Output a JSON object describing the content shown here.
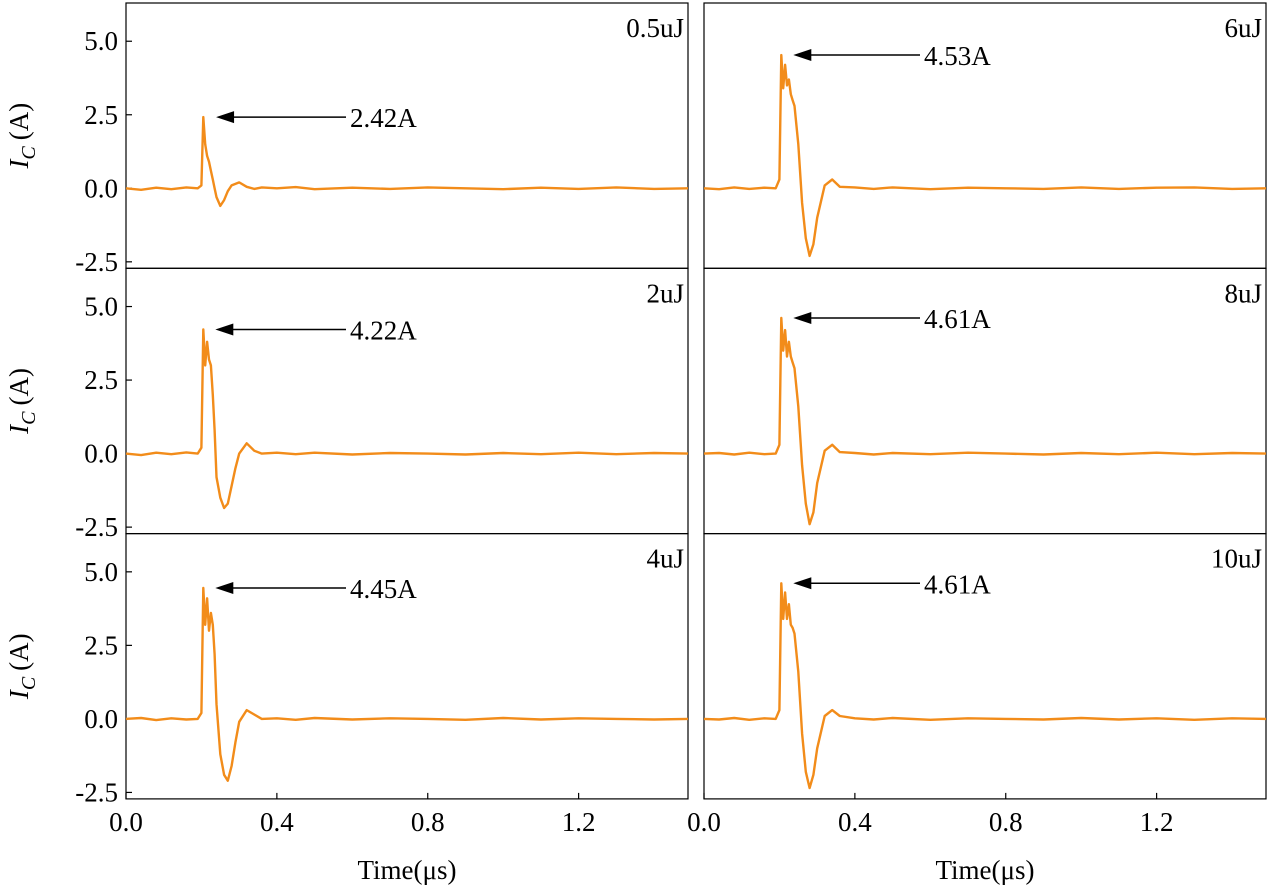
{
  "chart_data": [
    {
      "type": "line",
      "energy_label": "0.5uJ",
      "peak_label": "2.42A",
      "peak_x": 0.207,
      "peak_y": 2.42,
      "ylabel_symbol": "I",
      "ylabel_subscript": "C",
      "ylabel_unit": "(A)",
      "xlim": [
        0,
        1.49
      ],
      "ylim": [
        -2.72,
        6.3
      ],
      "yticks": [
        {
          "value": -2.5,
          "label": "-2.5"
        },
        {
          "value": 0,
          "label": "0.0"
        },
        {
          "value": 2.5,
          "label": "2.5"
        },
        {
          "value": 5,
          "label": "5.0"
        }
      ],
      "x": [
        0,
        0.04,
        0.08,
        0.12,
        0.16,
        0.19,
        0.2,
        0.205,
        0.21,
        0.215,
        0.22,
        0.225,
        0.23,
        0.235,
        0.24,
        0.25,
        0.26,
        0.27,
        0.28,
        0.29,
        0.3,
        0.32,
        0.34,
        0.36,
        0.4,
        0.45,
        0.5,
        0.6,
        0.7,
        0.8,
        0.9,
        1.0,
        1.1,
        1.2,
        1.3,
        1.4,
        1.49
      ],
      "series": [
        {
          "color": "#f28c1a",
          "values": [
            0,
            -0.05,
            0.02,
            -0.03,
            0.03,
            0,
            0.1,
            2.42,
            1.5,
            1.1,
            0.9,
            0.6,
            0.3,
            0,
            -0.3,
            -0.6,
            -0.4,
            -0.1,
            0.1,
            0.15,
            0.2,
            0.05,
            -0.02,
            0.03,
            0,
            0.04,
            -0.03,
            0.02,
            -0.02,
            0.03,
            0,
            -0.03,
            0.02,
            -0.02,
            0.03,
            -0.02,
            0
          ]
        }
      ]
    },
    {
      "type": "line",
      "energy_label": "2uJ",
      "peak_label": "4.22A",
      "peak_x": 0.205,
      "peak_y": 4.22,
      "ylabel_symbol": "I",
      "ylabel_subscript": "C",
      "ylabel_unit": "(A)",
      "xlim": [
        0,
        1.49
      ],
      "ylim": [
        -2.72,
        6.3
      ],
      "yticks": [
        {
          "value": -2.5,
          "label": "-2.5"
        },
        {
          "value": 0,
          "label": "0.0"
        },
        {
          "value": 2.5,
          "label": "2.5"
        },
        {
          "value": 5,
          "label": "5.0"
        }
      ],
      "x": [
        0,
        0.04,
        0.08,
        0.12,
        0.16,
        0.19,
        0.2,
        0.205,
        0.21,
        0.215,
        0.22,
        0.225,
        0.23,
        0.235,
        0.24,
        0.25,
        0.26,
        0.27,
        0.28,
        0.29,
        0.3,
        0.32,
        0.34,
        0.36,
        0.4,
        0.45,
        0.5,
        0.6,
        0.7,
        0.8,
        0.9,
        1.0,
        1.1,
        1.2,
        1.3,
        1.4,
        1.49
      ],
      "series": [
        {
          "color": "#f28c1a",
          "values": [
            0,
            -0.05,
            0.03,
            -0.02,
            0.04,
            0,
            0.2,
            4.22,
            3.0,
            3.8,
            3.2,
            3.0,
            2.0,
            0.8,
            -0.8,
            -1.5,
            -1.85,
            -1.7,
            -1.1,
            -0.5,
            0,
            0.35,
            0.1,
            0,
            0.03,
            -0.02,
            0.03,
            -0.03,
            0.02,
            0,
            -0.03,
            0.02,
            -0.02,
            0.03,
            -0.02,
            0.02,
            0
          ]
        }
      ]
    },
    {
      "type": "line",
      "energy_label": "4uJ",
      "peak_label": "4.45A",
      "peak_x": 0.205,
      "peak_y": 4.45,
      "ylabel_symbol": "I",
      "ylabel_subscript": "C",
      "ylabel_unit": "(A)",
      "xlabel": "Time(μs)",
      "xlim": [
        0,
        1.49
      ],
      "ylim": [
        -2.72,
        6.3
      ],
      "xticks": [
        {
          "value": 0,
          "label": "0.0"
        },
        {
          "value": 0.4,
          "label": "0.4"
        },
        {
          "value": 0.8,
          "label": "0.8"
        },
        {
          "value": 1.2,
          "label": "1.2"
        }
      ],
      "yticks": [
        {
          "value": -2.5,
          "label": "-2.5"
        },
        {
          "value": 0,
          "label": "0.0"
        },
        {
          "value": 2.5,
          "label": "2.5"
        },
        {
          "value": 5,
          "label": "5.0"
        }
      ],
      "x": [
        0,
        0.04,
        0.08,
        0.12,
        0.16,
        0.19,
        0.2,
        0.205,
        0.21,
        0.215,
        0.22,
        0.225,
        0.23,
        0.235,
        0.24,
        0.25,
        0.26,
        0.27,
        0.28,
        0.29,
        0.3,
        0.32,
        0.34,
        0.36,
        0.4,
        0.45,
        0.5,
        0.6,
        0.7,
        0.8,
        0.9,
        1.0,
        1.1,
        1.2,
        1.3,
        1.4,
        1.49
      ],
      "series": [
        {
          "color": "#f28c1a",
          "values": [
            0,
            0.03,
            -0.04,
            0.02,
            -0.02,
            0,
            0.2,
            4.45,
            3.2,
            4.1,
            3.0,
            3.6,
            3.2,
            2.2,
            0.5,
            -1.2,
            -1.9,
            -2.1,
            -1.6,
            -0.8,
            -0.1,
            0.3,
            0.15,
            0,
            0.02,
            -0.03,
            0.03,
            -0.02,
            0.02,
            0,
            -0.03,
            0.03,
            -0.02,
            0.02,
            0,
            -0.02,
            0
          ]
        }
      ]
    },
    {
      "type": "line",
      "energy_label": "6uJ",
      "peak_label": "4.53A",
      "peak_x": 0.205,
      "peak_y": 4.53,
      "xlim": [
        0,
        1.49
      ],
      "ylim": [
        -2.72,
        6.3
      ],
      "x": [
        0,
        0.04,
        0.08,
        0.12,
        0.16,
        0.19,
        0.2,
        0.205,
        0.21,
        0.215,
        0.22,
        0.225,
        0.23,
        0.235,
        0.24,
        0.25,
        0.26,
        0.27,
        0.28,
        0.29,
        0.3,
        0.32,
        0.34,
        0.36,
        0.4,
        0.45,
        0.5,
        0.6,
        0.7,
        0.8,
        0.9,
        1.0,
        1.1,
        1.2,
        1.3,
        1.4,
        1.49
      ],
      "series": [
        {
          "color": "#f28c1a",
          "values": [
            0,
            -0.03,
            0.03,
            -0.02,
            0.02,
            0,
            0.3,
            4.53,
            3.4,
            4.2,
            3.5,
            3.7,
            3.2,
            3.0,
            2.8,
            1.5,
            -0.5,
            -1.7,
            -2.3,
            -1.9,
            -1.0,
            0.1,
            0.3,
            0.05,
            0.03,
            -0.02,
            0.03,
            -0.03,
            0.02,
            0,
            -0.02,
            0.03,
            -0.02,
            0.02,
            0.03,
            -0.02,
            0
          ]
        }
      ]
    },
    {
      "type": "line",
      "energy_label": "8uJ",
      "peak_label": "4.61A",
      "peak_x": 0.205,
      "peak_y": 4.61,
      "xlim": [
        0,
        1.49
      ],
      "ylim": [
        -2.72,
        6.3
      ],
      "x": [
        0,
        0.04,
        0.08,
        0.12,
        0.16,
        0.19,
        0.2,
        0.205,
        0.21,
        0.215,
        0.22,
        0.225,
        0.23,
        0.235,
        0.24,
        0.25,
        0.26,
        0.27,
        0.28,
        0.29,
        0.3,
        0.32,
        0.34,
        0.36,
        0.4,
        0.45,
        0.5,
        0.6,
        0.7,
        0.8,
        0.9,
        1.0,
        1.1,
        1.2,
        1.3,
        1.4,
        1.49
      ],
      "series": [
        {
          "color": "#f28c1a",
          "values": [
            0,
            0.02,
            -0.03,
            0.03,
            -0.02,
            0,
            0.3,
            4.61,
            3.5,
            4.2,
            3.3,
            3.8,
            3.3,
            3.1,
            2.9,
            1.6,
            -0.4,
            -1.7,
            -2.4,
            -2.0,
            -1.0,
            0.1,
            0.3,
            0.05,
            0.02,
            -0.03,
            0.02,
            -0.02,
            0.03,
            0,
            -0.03,
            0.02,
            -0.02,
            0.03,
            -0.02,
            0.02,
            0
          ]
        }
      ]
    },
    {
      "type": "line",
      "energy_label": "10uJ",
      "peak_label": "4.61A",
      "peak_x": 0.205,
      "peak_y": 4.61,
      "xlabel": "Time(μs)",
      "xlim": [
        0,
        1.49
      ],
      "ylim": [
        -2.72,
        6.3
      ],
      "xticks": [
        {
          "value": 0,
          "label": "0.0"
        },
        {
          "value": 0.4,
          "label": "0.4"
        },
        {
          "value": 0.8,
          "label": "0.8"
        },
        {
          "value": 1.2,
          "label": "1.2"
        }
      ],
      "x": [
        0,
        0.04,
        0.08,
        0.12,
        0.16,
        0.19,
        0.2,
        0.205,
        0.21,
        0.215,
        0.22,
        0.225,
        0.23,
        0.235,
        0.24,
        0.25,
        0.26,
        0.27,
        0.28,
        0.29,
        0.3,
        0.32,
        0.34,
        0.36,
        0.4,
        0.45,
        0.5,
        0.6,
        0.7,
        0.8,
        0.9,
        1.0,
        1.1,
        1.2,
        1.3,
        1.4,
        1.49
      ],
      "series": [
        {
          "color": "#f28c1a",
          "values": [
            0,
            -0.02,
            0.03,
            -0.03,
            0.02,
            0,
            0.3,
            4.61,
            3.4,
            4.3,
            3.4,
            3.9,
            3.2,
            3.1,
            2.9,
            1.6,
            -0.5,
            -1.8,
            -2.35,
            -1.9,
            -1.0,
            0.1,
            0.3,
            0.1,
            0.02,
            -0.02,
            0.03,
            -0.03,
            0.02,
            0,
            -0.02,
            0.03,
            -0.02,
            0.02,
            -0.03,
            0.02,
            0
          ]
        }
      ]
    }
  ]
}
